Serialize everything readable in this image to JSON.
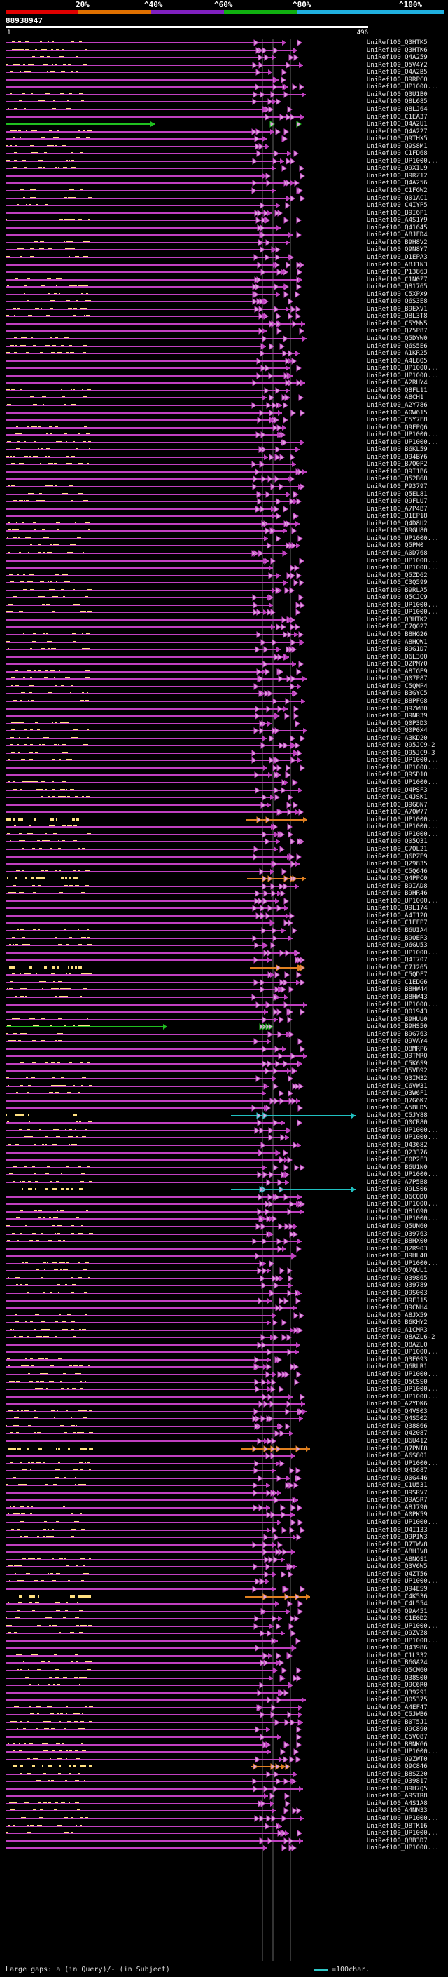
{
  "scale": {
    "ticks": [
      "20%",
      "^40%",
      "^60%",
      "^80%",
      "^100%"
    ],
    "segment_colors": [
      "#e00000",
      "#e07000",
      "#8020c0",
      "#10b010",
      "#20b0e0"
    ]
  },
  "query": {
    "id": "88938947",
    "start": "1",
    "end": "496"
  },
  "colors": {
    "hit_default": "#c040c0",
    "hit_green": "#20c020",
    "hit_cyan": "#20c0c0",
    "hit_orange": "#e08020",
    "gap_yellow": "#ffe080",
    "arrow_fill": "#e0a0e0"
  },
  "hits": [
    "UniRef100_Q3HTK5",
    "UniRef100_Q3HTK6",
    "UniRef100_Q4A259",
    "UniRef100_Q5V4Y2",
    "UniRef100_Q4A2B5",
    "UniRef100_B9RPC0",
    "UniRef100_UP1000...",
    "UniRef100_Q3U1B0",
    "UniRef100_Q8L685",
    "UniRef100_Q8LJ64",
    "UniRef100_C1EA37",
    "UniRef100_Q4A2U1",
    "UniRef100_Q4A227",
    "UniRef100_Q9THX5",
    "UniRef100_Q9S8M1",
    "UniRef100_C1FD68",
    "UniRef100_UP1000...",
    "UniRef100_Q9XIL9",
    "UniRef100_B9RZ12",
    "UniRef100_Q4A256",
    "UniRef100_C1FGW2",
    "UniRef100_Q01AC1",
    "UniRef100_C4IYP5",
    "UniRef100_B9I6P1",
    "UniRef100_A4S1Y9",
    "UniRef100_Q41645",
    "UniRef100_A8JFD4",
    "UniRef100_B9H8V2",
    "UniRef100_Q9N8Y7",
    "UniRef100_Q1EPA3",
    "UniRef100_A8J1N3",
    "UniRef100_P13863",
    "UniRef100_C1N0Z7",
    "UniRef100_Q81765",
    "UniRef100_C5XPX9",
    "UniRef100_Q6S3E8",
    "UniRef100_B9EXV1",
    "UniRef100_Q8L3T8",
    "UniRef100_C5YMW5",
    "UniRef100_Q75P87",
    "UniRef100_Q5DYW0",
    "UniRef100_Q6S5E6",
    "UniRef100_A1KR25",
    "UniRef100_A4L8Q5",
    "UniRef100_UP1000...",
    "UniRef100_UP1000...",
    "UniRef100_A2RUY4",
    "UniRef100_Q8FL11",
    "UniRef100_A8CH1",
    "UniRef100_A2Y786",
    "UniRef100_A0W615",
    "UniRef100_C5Y7E8",
    "UniRef100_Q9FPQ6",
    "UniRef100_UP1000...",
    "UniRef100_UP1000...",
    "UniRef100_B6KL59",
    "UniRef100_Q94BY6",
    "UniRef100_B7Q0P2",
    "UniRef100_Q9I1B6",
    "UniRef100_Q52B68",
    "UniRef100_P93797",
    "UniRef100_Q5EL81",
    "UniRef100_Q9FLU7",
    "UniRef100_A7P4B7",
    "UniRef100_Q1EP18",
    "UniRef100_Q4D8U2",
    "UniRef100_B9GU80",
    "UniRef100_UP1000...",
    "UniRef100_Q5PM0",
    "UniRef100_A0D768",
    "UniRef100_UP1000...",
    "UniRef100_UP1000...",
    "UniRef100_Q5ZD62",
    "UniRef100_C3Q599",
    "UniRef100_B9RLA5",
    "UniRef100_Q5CJC9",
    "UniRef100_UP1000...",
    "UniRef100_UP1000...",
    "UniRef100_Q3HTK2",
    "UniRef100_C7Q027",
    "UniRef100_B8HG26",
    "UniRef100_A8HQW1",
    "UniRef100_B9G1D7",
    "UniRef100_Q6L3Q0",
    "UniRef100_Q2PMY0",
    "UniRef100_A8IGE9",
    "UniRef100_Q07P87",
    "UniRef100_C5QMP4",
    "UniRef100_B3GYC5",
    "UniRef100_B8PFG8",
    "UniRef100_Q9ZW80",
    "UniRef100_B9NR39",
    "UniRef100_Q0P3D3",
    "UniRef100_Q0P0X4",
    "UniRef100_A3KD20",
    "UniRef100_Q95JC9-2",
    "UniRef100_Q95JC9-3",
    "UniRef100_UP1000...",
    "UniRef100_UP1000...",
    "UniRef100_Q9SD10",
    "UniRef100_UP1000...",
    "UniRef100_Q4PSF3",
    "UniRef100_C4JSK1",
    "UniRef100_B9G8N7",
    "UniRef100_A7QW77",
    "UniRef100_UP1000...",
    "UniRef100_UP1000...",
    "UniRef100_UP1000...",
    "UniRef100_Q05Q31",
    "UniRef100_C7QL21",
    "UniRef100_Q6PZE9",
    "UniRef100_Q29835",
    "UniRef100_C5Q646",
    "UniRef100_Q4PPC0",
    "UniRef100_B9IAD8",
    "UniRef100_B9HR46",
    "UniRef100_UP1000...",
    "UniRef100_Q9L174",
    "UniRef100_A4I120",
    "UniRef100_C1EFP7",
    "UniRef100_B6UIA4",
    "UniRef100_B9QEP3",
    "UniRef100_Q6GU53",
    "UniRef100_UP1000...",
    "UniRef100_Q4I707",
    "UniRef100_C7J265",
    "UniRef100_C5QDF7",
    "UniRef100_C1EDG6",
    "UniRef100_B8HW44",
    "UniRef100_B8HW43",
    "UniRef100_UP1000...",
    "UniRef100_Q01943",
    "UniRef100_B9HUU0",
    "UniRef100_B9HS50",
    "UniRef100_B9G763",
    "UniRef100_Q9VAY4",
    "UniRef100_Q8MRP6",
    "UniRef100_Q9TMR0",
    "UniRef100_C5K6S9",
    "UniRef100_Q5VB92",
    "UniRef100_Q3IM32",
    "UniRef100_C6VW31",
    "UniRef100_Q3W6F1",
    "UniRef100_Q7G6K7",
    "UniRef100_A5BLD5",
    "UniRef100_C5JY88",
    "UniRef100_Q0CR80",
    "UniRef100_UP1000...",
    "UniRef100_UP1000...",
    "UniRef100_Q43682",
    "UniRef100_Q23376",
    "UniRef100_C0P2F3",
    "UniRef100_B6U1N0",
    "UniRef100_UP1000...",
    "UniRef100_A7P5B8",
    "UniRef100_Q9LS06",
    "UniRef100_Q6CQD0",
    "UniRef100_UP1000...",
    "UniRef100_Q81G90",
    "UniRef100_UP1000...",
    "UniRef100_Q5UN60",
    "UniRef100_Q39763",
    "UniRef100_B8HX00",
    "UniRef100_Q2R903",
    "UniRef100_B9HL40",
    "UniRef100_UP1000...",
    "UniRef100_Q7QUL1",
    "UniRef100_Q39865",
    "UniRef100_Q39789",
    "UniRef100_Q9S003",
    "UniRef100_B9FJ15",
    "UniRef100_Q9CNH4",
    "UniRef100_A8JX59",
    "UniRef100_B6KHY2",
    "UniRef100_A1CMR3",
    "UniRef100_Q8AZL6-2",
    "UniRef100_Q8AZL0",
    "UniRef100_UP1000...",
    "UniRef100_Q3E093",
    "UniRef100_Q6RLR1",
    "UniRef100_UP1000...",
    "UniRef100_Q5CSS0",
    "UniRef100_UP1000...",
    "UniRef100_UP1000...",
    "UniRef100_A2YDK6",
    "UniRef100_Q4VS03",
    "UniRef100_Q4S502",
    "UniRef100_Q38866",
    "UniRef100_Q42087",
    "UniRef100_B6U412",
    "UniRef100_Q7PNI8",
    "UniRef100_A6S801",
    "UniRef100_UP1000...",
    "UniRef100_Q43687",
    "UniRef100_Q0G446",
    "UniRef100_C1U531",
    "UniRef100_B9SRV7",
    "UniRef100_Q9ASR7",
    "UniRef100_A8J790",
    "UniRef100_A0PK59",
    "UniRef100_UP1000...",
    "UniRef100_Q4I133",
    "UniRef100_Q9PIW3",
    "UniRef100_B7TWV8",
    "UniRef100_A8HJV8",
    "UniRef100_A8NQS1",
    "UniRef100_Q3V6W5",
    "UniRef100_Q4ZT56",
    "UniRef100_UP1000...",
    "UniRef100_Q94ES9",
    "UniRef100_C4K536",
    "UniRef100_C4L554",
    "UniRef100_Q9A451",
    "UniRef100_C1E0D2",
    "UniRef100_UP1000...",
    "UniRef100_Q9ZVZ8",
    "UniRef100_UP1000...",
    "UniRef100_Q43986",
    "UniRef100_C1L332",
    "UniRef100_B6GA24",
    "UniRef100_Q5CM60",
    "UniRef100_Q38S00",
    "UniRef100_Q9C6R0",
    "UniRef100_Q39291",
    "UniRef100_Q05375",
    "UniRef100_A4EF47",
    "UniRef100_C5JWB6",
    "UniRef100_B0T5J1",
    "UniRef100_Q9C890",
    "UniRef100_C5V087",
    "UniRef100_B8NKG6",
    "UniRef100_UP1000...",
    "UniRef100_Q9ZWT0",
    "UniRef100_Q9C846",
    "UniRef100_B8SZ20",
    "UniRef100_Q39817",
    "UniRef100_B9H7Q5",
    "UniRef100_A9STR8",
    "UniRef100_A4S1A8",
    "UniRef100_A4NN33",
    "UniRef100_UP1000...",
    "UniRef100_Q8TK16",
    "UniRef100_UP1000...",
    "UniRef100_Q8B3D7",
    "UniRef100_UP1000..."
  ],
  "special_hits": {
    "4": "hit_default",
    "11": "hit_green",
    "133": "hit_green",
    "145": "hit_cyan",
    "155": "hit_cyan",
    "105": "hit_orange",
    "113": "hit_orange",
    "125": "hit_orange",
    "190": "hit_orange",
    "210": "hit_orange",
    "233": "hit_orange"
  },
  "legend": {
    "text": "Large gaps: a (in Query)/- (in Subject)",
    "scale": "=100char."
  }
}
